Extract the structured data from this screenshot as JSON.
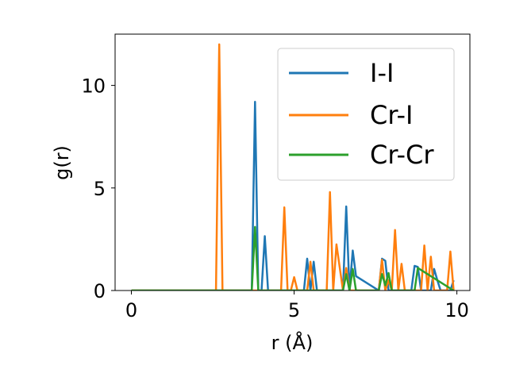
{
  "chart_data": {
    "type": "line",
    "title": "",
    "xlabel": "r (Å)",
    "ylabel": "g(r)",
    "xlim": [
      -0.5,
      10.4
    ],
    "ylim": [
      0,
      12.5
    ],
    "xticks": [
      0,
      5,
      10
    ],
    "yticks": [
      0,
      5,
      10
    ],
    "xtick_labels": [
      "0",
      "5",
      "10"
    ],
    "ytick_labels": [
      "0",
      "5",
      "10"
    ],
    "grid": false,
    "legend_position": "top-right",
    "series": [
      {
        "name": "I-I",
        "color": "#1f77b4",
        "x": [
          0.0,
          3.6,
          3.7,
          3.8,
          3.9,
          4.0,
          4.1,
          4.2,
          5.3,
          5.4,
          5.5,
          5.6,
          5.7,
          6.5,
          6.6,
          6.7,
          6.8,
          6.9,
          7.6,
          7.7,
          7.8,
          7.9,
          8.6,
          8.7,
          8.8,
          8.9,
          9.2,
          9.3,
          9.4,
          9.5,
          9.8,
          9.9
        ],
        "y": [
          0,
          0,
          0,
          9.2,
          0,
          0,
          2.65,
          0,
          0,
          1.55,
          0,
          1.4,
          0,
          0,
          4.1,
          0,
          1.95,
          0.7,
          0,
          1.55,
          1.45,
          0,
          0,
          1.2,
          1.15,
          0,
          0,
          1.05,
          0.5,
          0,
          0,
          0.5
        ]
      },
      {
        "name": "Cr-I",
        "color": "#ff7f0e",
        "x": [
          0.0,
          2.6,
          2.7,
          2.8,
          4.5,
          4.6,
          4.7,
          4.8,
          4.9,
          5.0,
          5.1,
          5.4,
          5.5,
          5.6,
          5.9,
          6.0,
          6.1,
          6.2,
          6.3,
          6.5,
          6.6,
          6.7,
          7.6,
          7.7,
          7.8,
          7.9,
          8.0,
          8.1,
          8.2,
          8.3,
          8.4,
          8.8,
          8.9,
          9.0,
          9.1,
          9.2,
          9.3,
          9.4,
          9.7,
          9.8,
          9.9
        ],
        "y": [
          0,
          0,
          12.0,
          0,
          0,
          0,
          4.05,
          0,
          0,
          0.65,
          0,
          0,
          1.4,
          0,
          0,
          0,
          4.8,
          0,
          2.25,
          0,
          1.1,
          0,
          0,
          1.5,
          0,
          0.5,
          0,
          2.95,
          0,
          1.3,
          0,
          0,
          0,
          2.2,
          0,
          1.65,
          0,
          0,
          0,
          1.9,
          0
        ]
      },
      {
        "name": "Cr-Cr",
        "color": "#2ca02c",
        "x": [
          0.0,
          3.6,
          3.7,
          3.8,
          3.9,
          4.0,
          6.4,
          6.5,
          6.6,
          6.7,
          6.8,
          6.9,
          7.6,
          7.7,
          7.8,
          7.9,
          8.0,
          8.6,
          8.7,
          8.8,
          9.9
        ],
        "y": [
          0,
          0,
          0,
          3.1,
          0,
          0,
          0,
          0,
          0.8,
          0,
          1.05,
          0,
          0,
          0.8,
          0.25,
          0.85,
          0,
          0,
          0,
          1.1,
          0
        ]
      }
    ]
  }
}
